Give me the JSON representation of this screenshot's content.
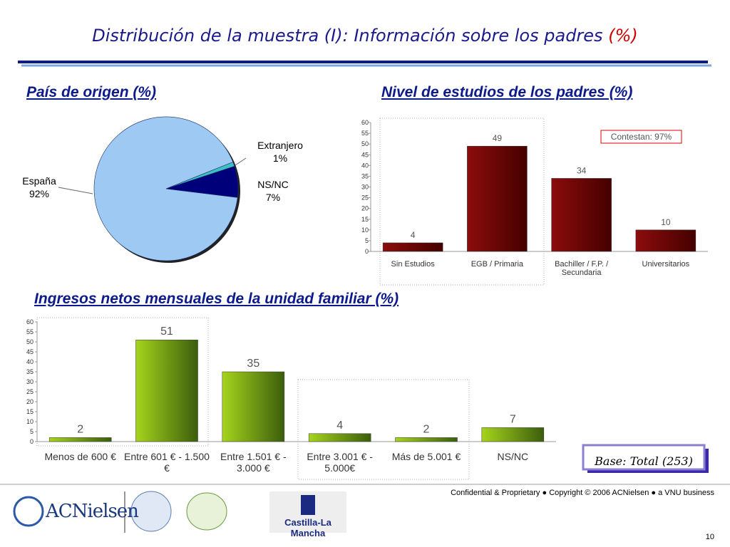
{
  "title": "Distribución de la muestra (I): Información sobre los padres",
  "title_suffix": "(%)",
  "chart_data": [
    {
      "type": "pie",
      "title": "País de origen (%)",
      "categories": [
        "España",
        "Extranjero",
        "NS/NC"
      ],
      "values": [
        92,
        1,
        7
      ],
      "value_labels": [
        "92%",
        "1%",
        "7%"
      ],
      "colors": [
        "#9dc9f2",
        "#3fbfc4",
        "#00007a"
      ]
    },
    {
      "type": "bar",
      "title": "Nivel de estudios de los padres (%)",
      "categories": [
        "Sin Estudios",
        "EGB / Primaria",
        "Bachiller / F.P. / Secundaria",
        "Universitarios"
      ],
      "values": [
        4,
        49,
        34,
        10
      ],
      "gradient": [
        "#8c0c0c",
        "#450000"
      ],
      "ylim": [
        0,
        60
      ],
      "yticks": [
        0,
        5,
        10,
        15,
        20,
        25,
        30,
        35,
        40,
        45,
        50,
        55,
        60
      ],
      "annotation": "Contestan: 97%"
    },
    {
      "type": "bar",
      "title": "Ingresos netos mensuales de la unidad familiar (%)",
      "categories": [
        "Menos de 600 €",
        "Entre 601 € - 1.500 €",
        "Entre 1.501 € - 3.000 €",
        "Entre 3.001 € - 5.000€",
        "Más de 5.001 €",
        "NS/NC"
      ],
      "values": [
        2,
        51,
        35,
        4,
        2,
        7
      ],
      "gradient": [
        "#a6d41c",
        "#3b5e0c"
      ],
      "ylim": [
        0,
        60
      ],
      "yticks": [
        0,
        5,
        10,
        15,
        20,
        25,
        30,
        35,
        40,
        45,
        50,
        55,
        60
      ]
    }
  ],
  "base_note": "Base: Total (253)",
  "footer": "Confidential & Proprietary ● Copyright © 2006 ACNielsen ● a VNU business",
  "page_number": "10",
  "logos": [
    "ACNielsen",
    "Castilla-La Mancha"
  ]
}
